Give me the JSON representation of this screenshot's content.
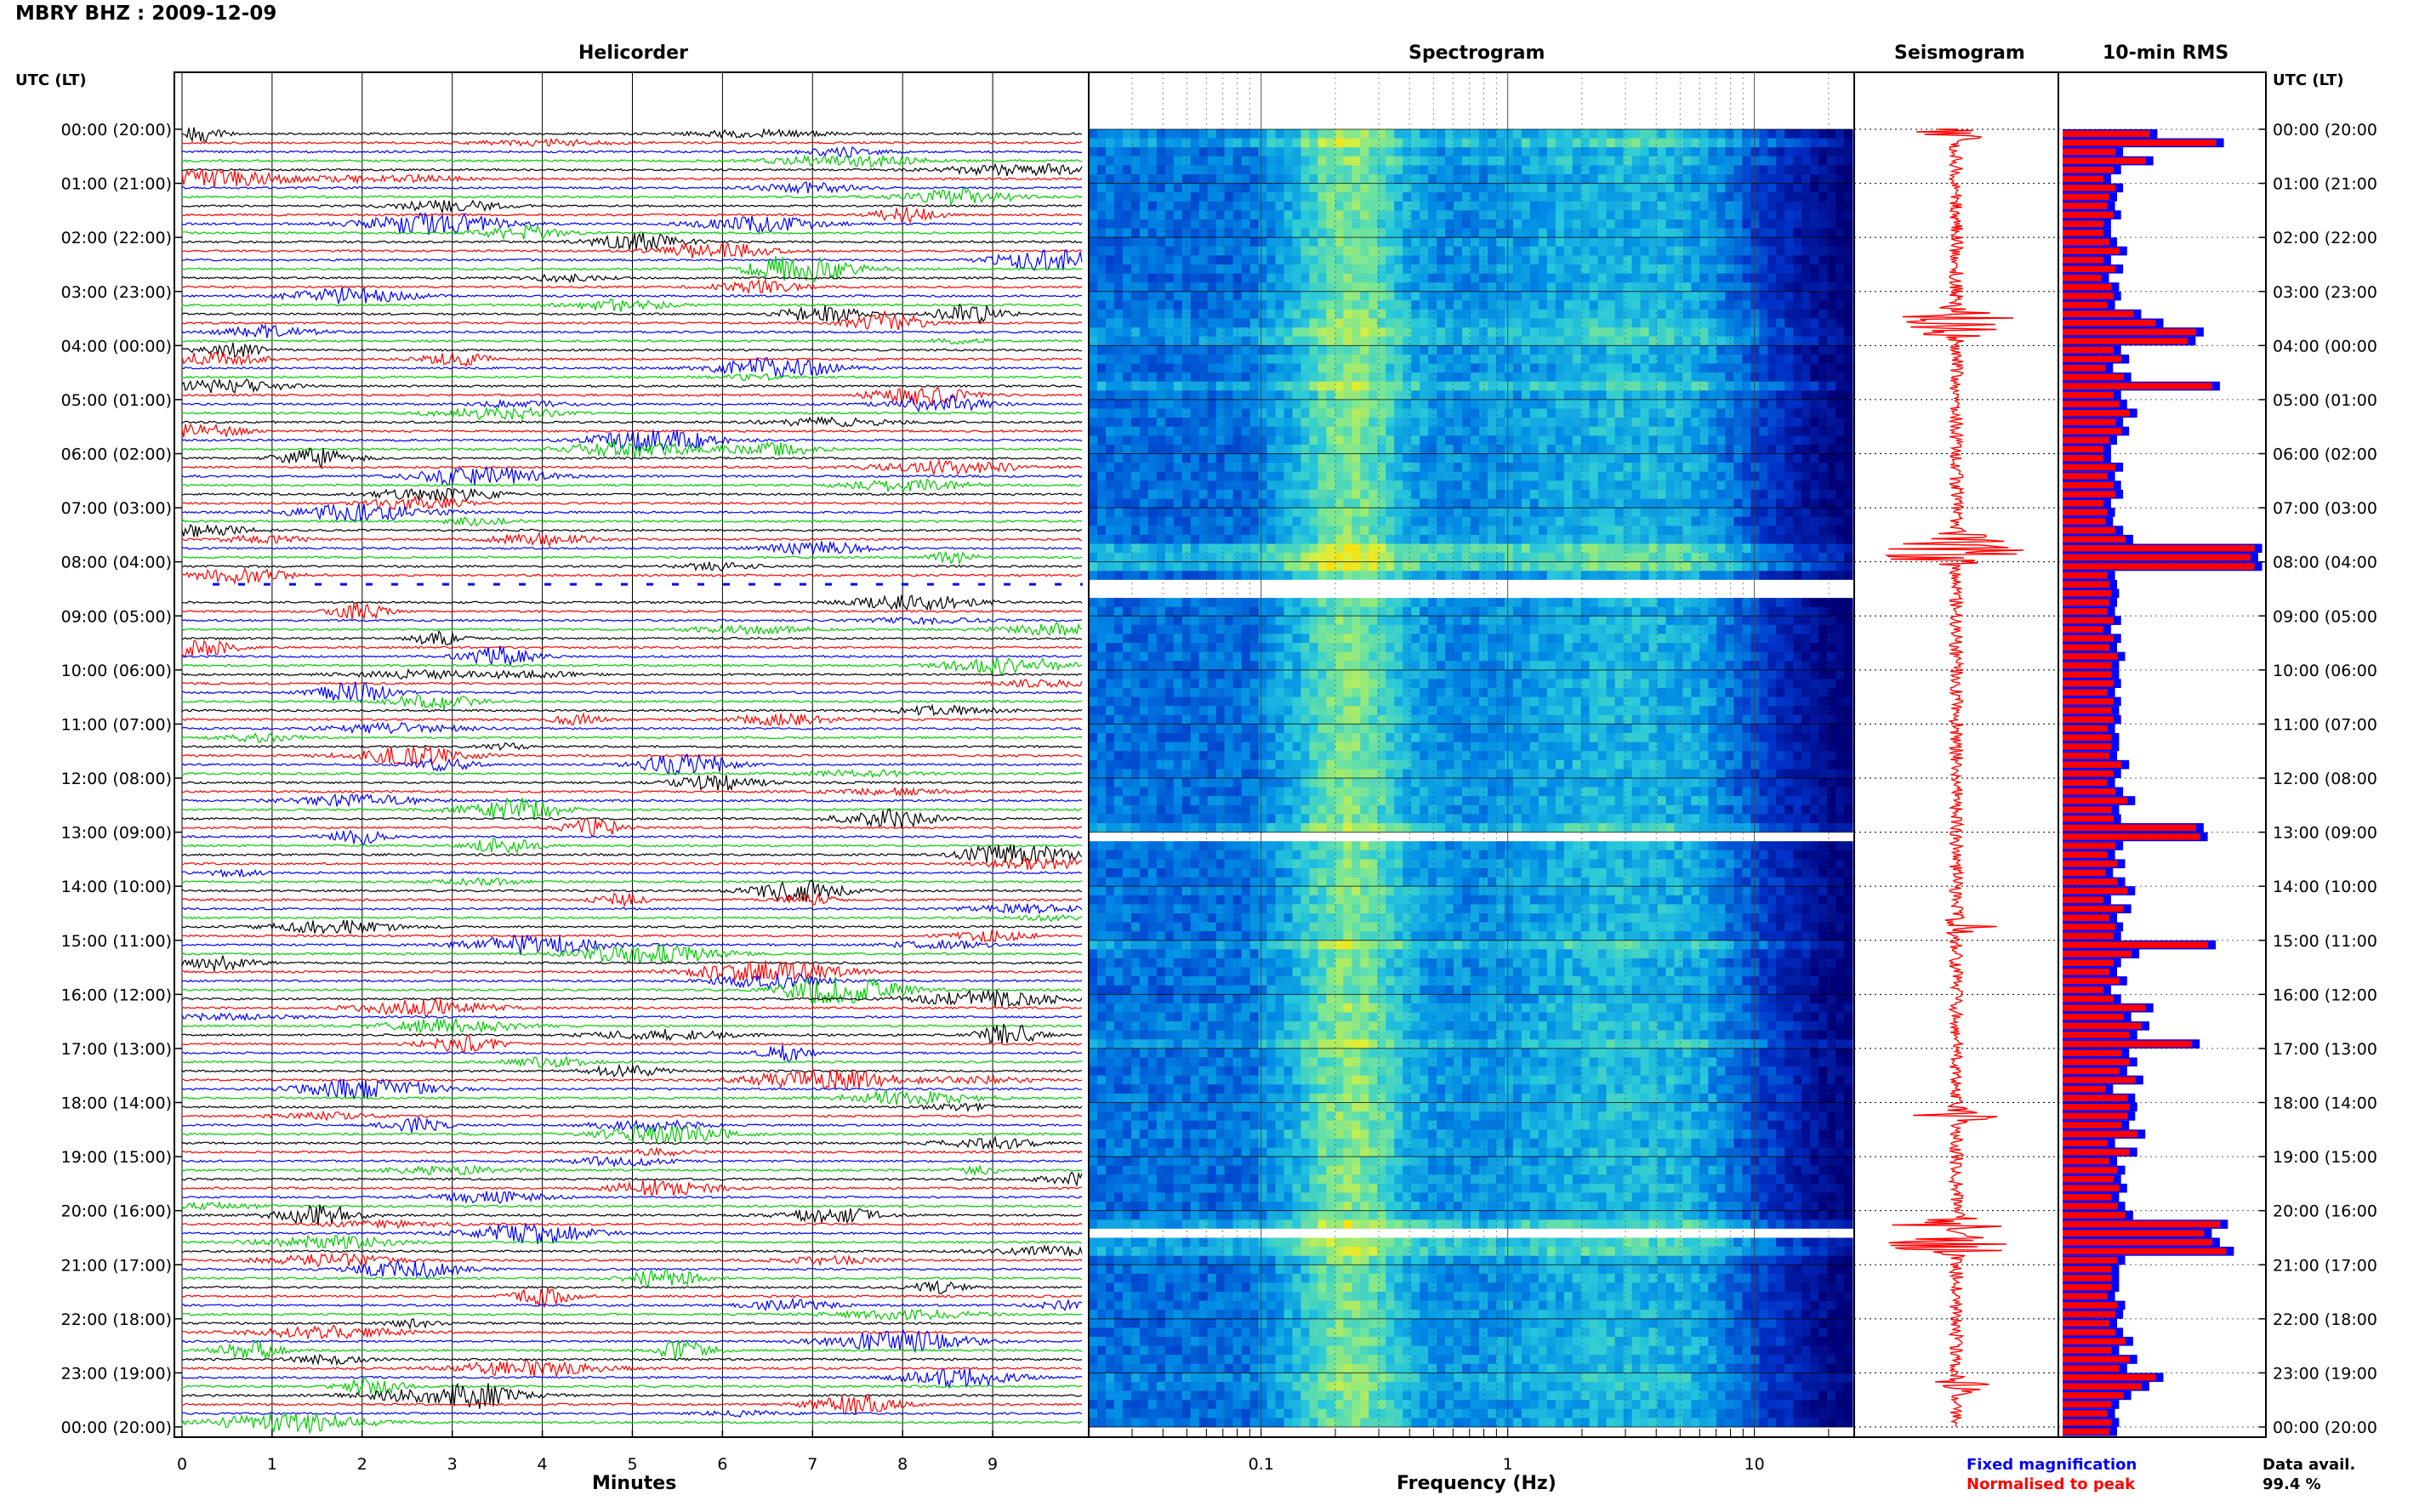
{
  "header": {
    "station": "MBRY BHZ : 2009-12-09"
  },
  "panels": {
    "helicorder": "Helicorder",
    "spectrogram": "Spectrogram",
    "seismogram": "Seismogram",
    "rms": "10-min RMS"
  },
  "axis_titles": {
    "left_time": "UTC (LT)",
    "right_time": "UTC (LT)",
    "minutes": "Minutes",
    "frequency": "Frequency (Hz)"
  },
  "legend": {
    "fixed": "Fixed magnification",
    "normalised": "Normalised to peak"
  },
  "data_avail": {
    "label": "Data avail.",
    "value": "99.4 %"
  },
  "colors": {
    "trace_cycle": [
      "#000000",
      "#ff0000",
      "#0000ff",
      "#00cc00"
    ],
    "rms_fixed": "#0000ff",
    "rms_norm": "#ff0000",
    "seismogram": "#ff0000"
  },
  "chart_data": [
    {
      "type": "line",
      "panel": "Helicorder",
      "xlabel": "Minutes",
      "x_ticks": [
        "0",
        "1",
        "2",
        "3",
        "4",
        "5",
        "6",
        "7",
        "8",
        "9"
      ],
      "xlim": [
        0,
        10
      ],
      "y_ticks_left": [
        "00:00 (20:00)",
        "01:00 (21:00)",
        "02:00 (22:00)",
        "03:00 (23:00)",
        "04:00 (00:00)",
        "05:00 (01:00)",
        "06:00 (02:00)",
        "07:00 (03:00)",
        "08:00 (04:00)",
        "09:00 (05:00)",
        "10:00 (06:00)",
        "11:00 (07:00)",
        "12:00 (08:00)",
        "13:00 (09:00)",
        "14:00 (10:00)",
        "15:00 (11:00)",
        "16:00 (12:00)",
        "17:00 (13:00)",
        "18:00 (14:00)",
        "19:00 (15:00)",
        "20:00 (16:00)",
        "21:00 (17:00)",
        "22:00 (18:00)",
        "23:00 (19:00)",
        "00:00 (20:00)"
      ],
      "traces_per_hour": 6,
      "hours": 24,
      "gap_rows": [
        50,
        51
      ]
    },
    {
      "type": "heatmap",
      "panel": "Spectrogram",
      "xlabel": "Frequency (Hz)",
      "x_scale": "log",
      "xlim": [
        0.02,
        25
      ],
      "x_ticks": [
        "0.1",
        "1",
        "10"
      ],
      "gap_rows": [
        50,
        51,
        78,
        122
      ]
    },
    {
      "type": "line",
      "panel": "Seismogram",
      "bursts": [
        {
          "row": 0,
          "amp": 0.6
        },
        {
          "row": 20,
          "amp": 0.9
        },
        {
          "row": 21,
          "amp": 0.7
        },
        {
          "row": 22,
          "amp": 0.6
        },
        {
          "row": 45,
          "amp": 0.7
        },
        {
          "row": 46,
          "amp": 0.9
        },
        {
          "row": 47,
          "amp": 1.0
        },
        {
          "row": 88,
          "amp": 0.5
        },
        {
          "row": 109,
          "amp": 0.6
        },
        {
          "row": 121,
          "amp": 0.9
        },
        {
          "row": 123,
          "amp": 1.0
        },
        {
          "row": 124,
          "amp": 0.9
        },
        {
          "row": 139,
          "amp": 0.6
        }
      ]
    },
    {
      "type": "bar",
      "panel": "10-min RMS",
      "orientation": "horizontal",
      "series": [
        {
          "name": "Fixed magnification",
          "color": "#0000ff"
        },
        {
          "name": "Normalised to peak",
          "color": "#ff0000"
        }
      ],
      "values": [
        0.47,
        0.8,
        0.3,
        0.45,
        0.29,
        0.24,
        0.3,
        0.27,
        0.26,
        0.29,
        0.24,
        0.24,
        0.27,
        0.32,
        0.24,
        0.3,
        0.23,
        0.28,
        0.29,
        0.26,
        0.39,
        0.5,
        0.7,
        0.66,
        0.29,
        0.33,
        0.25,
        0.34,
        0.78,
        0.29,
        0.32,
        0.37,
        0.3,
        0.33,
        0.27,
        0.24,
        0.24,
        0.3,
        0.26,
        0.29,
        0.3,
        0.24,
        0.26,
        0.25,
        0.3,
        0.35,
        0.99,
        0.97,
        0.99,
        0.26,
        0.27,
        0.28,
        0.27,
        0.26,
        0.29,
        0.24,
        0.29,
        0.27,
        0.31,
        0.28,
        0.28,
        0.29,
        0.26,
        0.29,
        0.28,
        0.29,
        0.26,
        0.28,
        0.28,
        0.27,
        0.33,
        0.29,
        0.26,
        0.3,
        0.36,
        0.28,
        0.29,
        0.7,
        0.72,
        0.3,
        0.26,
        0.31,
        0.25,
        0.31,
        0.36,
        0.24,
        0.34,
        0.27,
        0.3,
        0.29,
        0.76,
        0.38,
        0.29,
        0.27,
        0.32,
        0.24,
        0.29,
        0.45,
        0.34,
        0.43,
        0.37,
        0.68,
        0.33,
        0.37,
        0.32,
        0.4,
        0.25,
        0.36,
        0.37,
        0.36,
        0.33,
        0.41,
        0.26,
        0.37,
        0.27,
        0.31,
        0.29,
        0.32,
        0.28,
        0.31,
        0.35,
        0.82,
        0.74,
        0.78,
        0.85,
        0.31,
        0.28,
        0.28,
        0.28,
        0.26,
        0.31,
        0.3,
        0.27,
        0.3,
        0.35,
        0.28,
        0.37,
        0.32,
        0.5,
        0.43,
        0.34,
        0.28,
        0.26,
        0.28,
        0.27
      ]
    }
  ]
}
